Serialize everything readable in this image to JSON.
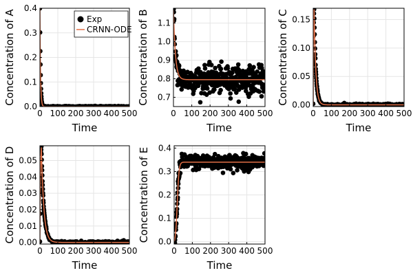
{
  "legend": {
    "exp_label": "Exp",
    "model_label": "CRNN-ODE"
  },
  "colors": {
    "exp": "#000000",
    "model": "#e26f46",
    "grid": "#e5e5e5"
  },
  "chart_data": [
    {
      "type": "scatter",
      "panel": "A",
      "xlabel": "Time",
      "ylabel": "Concentration of A",
      "xlim": [
        0,
        500
      ],
      "ylim": [
        0,
        0.4
      ],
      "xticks": [
        0,
        100,
        200,
        300,
        400,
        500
      ],
      "yticks": [
        0.0,
        0.1,
        0.2,
        0.3,
        0.4
      ],
      "ytick_labels": [
        "0.0",
        "0.1",
        "0.2",
        "0.3",
        "0.4"
      ],
      "legend_position": "top-right",
      "profile": {
        "kind": "decay",
        "initial": 0.4,
        "final": 0.0,
        "tau": 3.5,
        "noise": 0.001
      },
      "series": [
        {
          "name": "Exp",
          "kind": "points"
        },
        {
          "name": "CRNN-ODE",
          "kind": "line"
        }
      ]
    },
    {
      "type": "scatter",
      "panel": "B",
      "xlabel": "Time",
      "ylabel": "Concentration of B",
      "xlim": [
        0,
        500
      ],
      "ylim": [
        0.65,
        1.18
      ],
      "xticks": [
        0,
        100,
        200,
        300,
        400,
        500
      ],
      "yticks": [
        0.7,
        0.8,
        0.9,
        1.0,
        1.1
      ],
      "ytick_labels": [
        "0.7",
        "0.8",
        "0.9",
        "1.0",
        "1.1"
      ],
      "profile": {
        "kind": "decay",
        "initial": 1.17,
        "final": 0.795,
        "tau": 11,
        "noise": 0.035
      },
      "series": [
        {
          "name": "Exp",
          "kind": "points"
        },
        {
          "name": "CRNN-ODE",
          "kind": "line"
        }
      ]
    },
    {
      "type": "scatter",
      "panel": "C",
      "xlabel": "Time",
      "ylabel": "Concentration of C",
      "xlim": [
        0,
        500
      ],
      "ylim": [
        -0.003,
        0.17
      ],
      "xticks": [
        0,
        100,
        200,
        300,
        400,
        500
      ],
      "yticks": [
        0.0,
        0.05,
        0.1,
        0.15
      ],
      "ytick_labels": [
        "0.00",
        "0.05",
        "0.10",
        "0.15"
      ],
      "profile": {
        "kind": "pulse",
        "peak": 0.168,
        "tpeak": 5,
        "rise": 1.8,
        "fall": 9.5,
        "noise": 0.001
      },
      "series": [
        {
          "name": "Exp",
          "kind": "points"
        },
        {
          "name": "CRNN-ODE",
          "kind": "line"
        }
      ]
    },
    {
      "type": "scatter",
      "panel": "D",
      "xlabel": "Time",
      "ylabel": "Concentration of D",
      "xlim": [
        0,
        500
      ],
      "ylim": [
        -0.001,
        0.059
      ],
      "xticks": [
        0,
        100,
        200,
        300,
        400,
        500
      ],
      "yticks": [
        0.0,
        0.01,
        0.02,
        0.03,
        0.04,
        0.05
      ],
      "ytick_labels": [
        "0.00",
        "0.01",
        "0.02",
        "0.03",
        "0.04",
        "0.05"
      ],
      "profile": {
        "kind": "pulse",
        "peak": 0.058,
        "tpeak": 8,
        "rise": 3.0,
        "fall": 14,
        "noise": 0.0004
      },
      "series": [
        {
          "name": "Exp",
          "kind": "points"
        },
        {
          "name": "CRNN-ODE",
          "kind": "line"
        }
      ]
    },
    {
      "type": "scatter",
      "panel": "E",
      "xlabel": "Time",
      "ylabel": "Concentration of E",
      "xlim": [
        0,
        500
      ],
      "ylim": [
        -0.01,
        0.41
      ],
      "xticks": [
        0,
        100,
        200,
        300,
        400,
        500
      ],
      "yticks": [
        0.0,
        0.1,
        0.2,
        0.3,
        0.4
      ],
      "ytick_labels": [
        "0.0",
        "0.1",
        "0.2",
        "0.3",
        "0.4"
      ],
      "profile": {
        "kind": "sigmoid",
        "final": 0.34,
        "t0": 17,
        "width": 5,
        "noise": 0.016
      },
      "series": [
        {
          "name": "Exp",
          "kind": "points"
        },
        {
          "name": "CRNN-ODE",
          "kind": "line"
        }
      ]
    }
  ]
}
